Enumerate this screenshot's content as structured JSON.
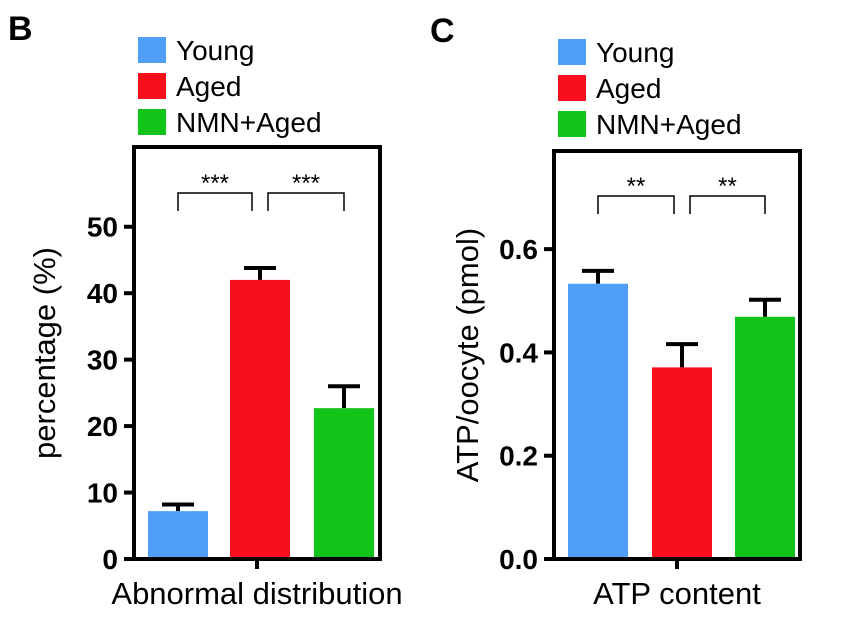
{
  "colors": {
    "young": "#4f9ef8",
    "aged": "#f80f1b",
    "nmn_aged": "#12c31a",
    "axis": "#000000"
  },
  "chart_data": [
    {
      "panel_label": "B",
      "type": "bar",
      "categories": [
        "Young",
        "Aged",
        "NMN+Aged"
      ],
      "series": [
        {
          "values": [
            7.2,
            42.0,
            22.7
          ],
          "errors": [
            1.0,
            1.8,
            3.3
          ]
        }
      ],
      "legend": {
        "position": "top-left",
        "entries": [
          "Young",
          "Aged",
          "NMN+Aged"
        ]
      },
      "xlabel": "Abnormal distribution",
      "ylabel": "percentage (%)",
      "ylim": [
        0,
        62
      ],
      "yticks": [
        "0",
        "10",
        "20",
        "30",
        "40",
        "50"
      ],
      "grid": false,
      "significance": [
        {
          "pair": [
            0,
            1
          ],
          "label": "***"
        },
        {
          "pair": [
            1,
            2
          ],
          "label": "***"
        }
      ]
    },
    {
      "panel_label": "C",
      "type": "bar",
      "categories": [
        "Young",
        "Aged",
        "NMN+Aged"
      ],
      "series": [
        {
          "values": [
            0.533,
            0.371,
            0.469
          ],
          "errors": [
            0.025,
            0.045,
            0.033
          ]
        }
      ],
      "legend": {
        "position": "top-left",
        "entries": [
          "Young",
          "Aged",
          "NMN+Aged"
        ]
      },
      "xlabel": "ATP content",
      "ylabel": "ATP/oocyte (pmol)",
      "ylim": [
        0,
        0.79
      ],
      "yticks": [
        "0.0",
        "0.2",
        "0.4",
        "0.6"
      ],
      "grid": false,
      "significance": [
        {
          "pair": [
            0,
            1
          ],
          "label": "**"
        },
        {
          "pair": [
            1,
            2
          ],
          "label": "**"
        }
      ]
    }
  ]
}
